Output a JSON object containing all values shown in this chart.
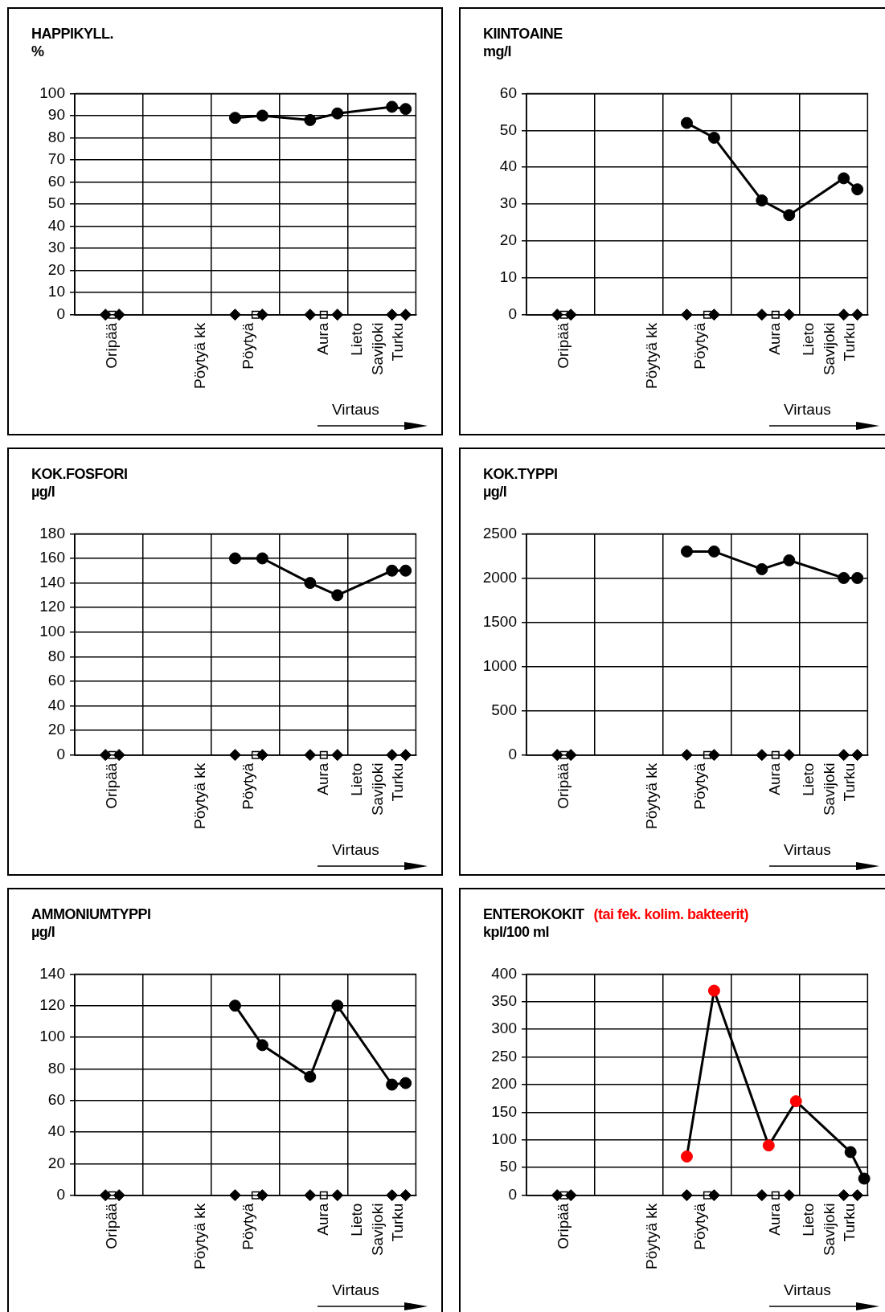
{
  "chart_data": [
    {
      "type": "line",
      "title": "HAPPIKYLL.",
      "ylabel": "%",
      "ylim": [
        0,
        100
      ],
      "yticks": [
        0,
        10,
        20,
        30,
        40,
        50,
        60,
        70,
        80,
        90,
        100
      ],
      "grid": true,
      "categories": [
        null,
        null,
        null,
        null,
        null,
        "Oripää",
        null,
        null,
        null,
        null,
        null,
        null,
        null,
        null,
        null,
        null,
        null,
        null,
        "Pöytyä kk",
        null,
        null,
        null,
        null,
        null,
        null,
        "Pöytyä",
        null,
        null,
        null,
        null,
        null,
        null,
        null,
        null,
        null,
        null,
        "Aura",
        null,
        null,
        null,
        null,
        "Lieto",
        null,
        null,
        "Savijoki",
        null,
        null,
        "Turku",
        null,
        null
      ],
      "series": [
        {
          "type": "line",
          "color": "#000000",
          "marker": "circle",
          "values": [
            null,
            null,
            null,
            null,
            null,
            null,
            null,
            null,
            null,
            null,
            null,
            null,
            null,
            null,
            null,
            null,
            null,
            null,
            null,
            null,
            null,
            null,
            null,
            89,
            null,
            null,
            null,
            90,
            null,
            null,
            null,
            null,
            null,
            null,
            88,
            null,
            null,
            null,
            91,
            null,
            null,
            null,
            null,
            null,
            null,
            null,
            94,
            null,
            93,
            null
          ]
        },
        {
          "type": "scatter",
          "color": "#000000",
          "marker": "diamond",
          "values": [
            null,
            null,
            null,
            null,
            0,
            null,
            0,
            null,
            null,
            null,
            null,
            null,
            null,
            null,
            null,
            null,
            null,
            null,
            null,
            null,
            null,
            null,
            null,
            0,
            null,
            null,
            null,
            0,
            null,
            null,
            null,
            null,
            null,
            null,
            0,
            null,
            null,
            null,
            0,
            null,
            null,
            null,
            null,
            null,
            null,
            null,
            0,
            null,
            0,
            null
          ]
        },
        {
          "type": "scatter",
          "color": "#ffffff",
          "marker": "square",
          "values": [
            null,
            null,
            null,
            null,
            null,
            0,
            null,
            null,
            null,
            null,
            null,
            null,
            null,
            null,
            null,
            null,
            null,
            null,
            null,
            null,
            null,
            null,
            null,
            null,
            null,
            null,
            0,
            null,
            null,
            null,
            null,
            null,
            null,
            null,
            null,
            null,
            0,
            null,
            null,
            null,
            null,
            null,
            null,
            null,
            null,
            null,
            null,
            null,
            null,
            null
          ]
        }
      ],
      "annotations": [
        "Virtaus"
      ]
    },
    {
      "type": "line",
      "title": "KIINTOAINE",
      "ylabel": "mg/l",
      "ylim": [
        0,
        60
      ],
      "yticks": [
        0,
        10,
        20,
        30,
        40,
        50,
        60
      ],
      "grid": true,
      "categories": [
        null,
        null,
        null,
        null,
        null,
        "Oripää",
        null,
        null,
        null,
        null,
        null,
        null,
        null,
        null,
        null,
        null,
        null,
        null,
        "Pöytyä kk",
        null,
        null,
        null,
        null,
        null,
        null,
        "Pöytyä",
        null,
        null,
        null,
        null,
        null,
        null,
        null,
        null,
        null,
        null,
        "Aura",
        null,
        null,
        null,
        null,
        "Lieto",
        null,
        null,
        "Savijoki",
        null,
        null,
        "Turku",
        null,
        null
      ],
      "series": [
        {
          "type": "line",
          "color": "#000000",
          "marker": "circle",
          "values": [
            null,
            null,
            null,
            null,
            null,
            null,
            null,
            null,
            null,
            null,
            null,
            null,
            null,
            null,
            null,
            null,
            null,
            null,
            null,
            null,
            null,
            null,
            null,
            52,
            null,
            null,
            null,
            48,
            null,
            null,
            null,
            null,
            null,
            null,
            31,
            null,
            null,
            null,
            27,
            null,
            null,
            null,
            null,
            null,
            null,
            null,
            37,
            null,
            34,
            null
          ]
        },
        {
          "type": "scatter",
          "color": "#000000",
          "marker": "diamond",
          "values": [
            null,
            null,
            null,
            null,
            0,
            null,
            0,
            null,
            null,
            null,
            null,
            null,
            null,
            null,
            null,
            null,
            null,
            null,
            null,
            null,
            null,
            null,
            null,
            0,
            null,
            null,
            null,
            0,
            null,
            null,
            null,
            null,
            null,
            null,
            0,
            null,
            null,
            null,
            0,
            null,
            null,
            null,
            null,
            null,
            null,
            null,
            0,
            null,
            0,
            null
          ]
        },
        {
          "type": "scatter",
          "color": "#ffffff",
          "marker": "square",
          "values": [
            null,
            null,
            null,
            null,
            null,
            0,
            null,
            null,
            null,
            null,
            null,
            null,
            null,
            null,
            null,
            null,
            null,
            null,
            null,
            null,
            null,
            null,
            null,
            null,
            null,
            null,
            0,
            null,
            null,
            null,
            null,
            null,
            null,
            null,
            null,
            null,
            0,
            null,
            null,
            null,
            null,
            null,
            null,
            null,
            null,
            null,
            null,
            null,
            null,
            null
          ]
        }
      ],
      "annotations": [
        "Virtaus"
      ]
    },
    {
      "type": "line",
      "title": "KOK.FOSFORI",
      "ylabel": "µg/l",
      "ylim": [
        0,
        180
      ],
      "yticks": [
        0,
        20,
        40,
        60,
        80,
        100,
        120,
        140,
        160,
        180
      ],
      "grid": true,
      "categories": [
        null,
        null,
        null,
        null,
        null,
        "Oripää",
        null,
        null,
        null,
        null,
        null,
        null,
        null,
        null,
        null,
        null,
        null,
        null,
        "Pöytyä kk",
        null,
        null,
        null,
        null,
        null,
        null,
        "Pöytyä",
        null,
        null,
        null,
        null,
        null,
        null,
        null,
        null,
        null,
        null,
        "Aura",
        null,
        null,
        null,
        null,
        "Lieto",
        null,
        null,
        "Savijoki",
        null,
        null,
        "Turku",
        null,
        null
      ],
      "series": [
        {
          "type": "line",
          "color": "#000000",
          "marker": "circle",
          "values": [
            null,
            null,
            null,
            null,
            null,
            null,
            null,
            null,
            null,
            null,
            null,
            null,
            null,
            null,
            null,
            null,
            null,
            null,
            null,
            null,
            null,
            null,
            null,
            160,
            null,
            null,
            null,
            160,
            null,
            null,
            null,
            null,
            null,
            null,
            140,
            null,
            null,
            null,
            130,
            null,
            null,
            null,
            null,
            null,
            null,
            null,
            150,
            null,
            150,
            null
          ]
        },
        {
          "type": "scatter",
          "color": "#000000",
          "marker": "diamond",
          "values": [
            null,
            null,
            null,
            null,
            0,
            null,
            0,
            null,
            null,
            null,
            null,
            null,
            null,
            null,
            null,
            null,
            null,
            null,
            null,
            null,
            null,
            null,
            null,
            0,
            null,
            null,
            null,
            0,
            null,
            null,
            null,
            null,
            null,
            null,
            0,
            null,
            null,
            null,
            0,
            null,
            null,
            null,
            null,
            null,
            null,
            null,
            0,
            null,
            0,
            null
          ]
        },
        {
          "type": "scatter",
          "color": "#ffffff",
          "marker": "square",
          "values": [
            null,
            null,
            null,
            null,
            null,
            0,
            null,
            null,
            null,
            null,
            null,
            null,
            null,
            null,
            null,
            null,
            null,
            null,
            null,
            null,
            null,
            null,
            null,
            null,
            null,
            null,
            0,
            null,
            null,
            null,
            null,
            null,
            null,
            null,
            null,
            null,
            0,
            null,
            null,
            null,
            null,
            null,
            null,
            null,
            null,
            null,
            null,
            null,
            null,
            null
          ]
        }
      ],
      "annotations": [
        "Virtaus"
      ]
    },
    {
      "type": "line",
      "title": "KOK.TYPPI",
      "ylabel": "µg/l",
      "ylim": [
        0,
        2500
      ],
      "yticks": [
        0,
        500,
        1000,
        1500,
        2000,
        2500
      ],
      "grid": true,
      "categories": [
        null,
        null,
        null,
        null,
        null,
        "Oripää",
        null,
        null,
        null,
        null,
        null,
        null,
        null,
        null,
        null,
        null,
        null,
        null,
        "Pöytyä kk",
        null,
        null,
        null,
        null,
        null,
        null,
        "Pöytyä",
        null,
        null,
        null,
        null,
        null,
        null,
        null,
        null,
        null,
        null,
        "Aura",
        null,
        null,
        null,
        null,
        "Lieto",
        null,
        null,
        "Savijoki",
        null,
        null,
        "Turku",
        null,
        null
      ],
      "series": [
        {
          "type": "line",
          "color": "#000000",
          "marker": "circle",
          "values": [
            null,
            null,
            null,
            null,
            null,
            null,
            null,
            null,
            null,
            null,
            null,
            null,
            null,
            null,
            null,
            null,
            null,
            null,
            null,
            null,
            null,
            null,
            null,
            2300,
            null,
            null,
            null,
            2300,
            null,
            null,
            null,
            null,
            null,
            null,
            2100,
            null,
            null,
            null,
            2200,
            null,
            null,
            null,
            null,
            null,
            null,
            null,
            2000,
            null,
            2000,
            null
          ]
        },
        {
          "type": "scatter",
          "color": "#000000",
          "marker": "diamond",
          "values": [
            null,
            null,
            null,
            null,
            0,
            null,
            0,
            null,
            null,
            null,
            null,
            null,
            null,
            null,
            null,
            null,
            null,
            null,
            null,
            null,
            null,
            null,
            null,
            0,
            null,
            null,
            null,
            0,
            null,
            null,
            null,
            null,
            null,
            null,
            0,
            null,
            null,
            null,
            0,
            null,
            null,
            null,
            null,
            null,
            null,
            null,
            0,
            null,
            0,
            null
          ]
        },
        {
          "type": "scatter",
          "color": "#ffffff",
          "marker": "square",
          "values": [
            null,
            null,
            null,
            null,
            null,
            0,
            null,
            null,
            null,
            null,
            null,
            null,
            null,
            null,
            null,
            null,
            null,
            null,
            null,
            null,
            null,
            null,
            null,
            null,
            null,
            null,
            0,
            null,
            null,
            null,
            null,
            null,
            null,
            null,
            null,
            null,
            0,
            null,
            null,
            null,
            null,
            null,
            null,
            null,
            null,
            null,
            null,
            null,
            null,
            null
          ]
        }
      ],
      "annotations": [
        "Virtaus"
      ]
    },
    {
      "type": "line",
      "title": "AMMONIUMTYPPI",
      "ylabel": "µg/l",
      "ylim": [
        0,
        140
      ],
      "yticks": [
        0,
        20,
        40,
        60,
        80,
        100,
        120,
        140
      ],
      "grid": true,
      "categories": [
        null,
        null,
        null,
        null,
        null,
        "Oripää",
        null,
        null,
        null,
        null,
        null,
        null,
        null,
        null,
        null,
        null,
        null,
        null,
        "Pöytyä kk",
        null,
        null,
        null,
        null,
        null,
        null,
        "Pöytyä",
        null,
        null,
        null,
        null,
        null,
        null,
        null,
        null,
        null,
        null,
        "Aura",
        null,
        null,
        null,
        null,
        "Lieto",
        null,
        null,
        "Savijoki",
        null,
        null,
        "Turku",
        null,
        null
      ],
      "series": [
        {
          "type": "line",
          "color": "#000000",
          "marker": "circle",
          "values": [
            null,
            null,
            null,
            null,
            null,
            null,
            null,
            null,
            null,
            null,
            null,
            null,
            null,
            null,
            null,
            null,
            null,
            null,
            null,
            null,
            null,
            null,
            null,
            120,
            null,
            null,
            null,
            95,
            null,
            null,
            null,
            null,
            null,
            null,
            75,
            null,
            null,
            null,
            120,
            null,
            null,
            null,
            null,
            null,
            null,
            null,
            70,
            null,
            71,
            null
          ]
        },
        {
          "type": "scatter",
          "color": "#000000",
          "marker": "diamond",
          "values": [
            null,
            null,
            null,
            null,
            0,
            null,
            0,
            null,
            null,
            null,
            null,
            null,
            null,
            null,
            null,
            null,
            null,
            null,
            null,
            null,
            null,
            null,
            null,
            0,
            null,
            null,
            null,
            0,
            null,
            null,
            null,
            null,
            null,
            null,
            0,
            null,
            null,
            null,
            0,
            null,
            null,
            null,
            null,
            null,
            null,
            null,
            0,
            null,
            0,
            null
          ]
        },
        {
          "type": "scatter",
          "color": "#ffffff",
          "marker": "square",
          "values": [
            null,
            null,
            null,
            null,
            null,
            0,
            null,
            null,
            null,
            null,
            null,
            null,
            null,
            null,
            null,
            null,
            null,
            null,
            null,
            null,
            null,
            null,
            null,
            null,
            null,
            null,
            0,
            null,
            null,
            null,
            null,
            null,
            null,
            null,
            null,
            null,
            0,
            null,
            null,
            null,
            null,
            null,
            null,
            null,
            null,
            null,
            null,
            null,
            null,
            null
          ]
        }
      ],
      "annotations": [
        "Virtaus"
      ]
    },
    {
      "type": "line",
      "title": "ENTEROKOKIT",
      "subtitle": "(tai fek. kolim. bakteerit)",
      "ylabel": "kpl/100 ml",
      "ylim": [
        0,
        400
      ],
      "yticks": [
        0,
        50,
        100,
        150,
        200,
        250,
        300,
        350,
        400
      ],
      "grid": true,
      "categories": [
        null,
        null,
        null,
        null,
        null,
        "Oripää",
        null,
        null,
        null,
        null,
        null,
        null,
        null,
        null,
        null,
        null,
        null,
        null,
        "Pöytyä kk",
        null,
        null,
        null,
        null,
        null,
        null,
        "Pöytyä",
        null,
        null,
        null,
        null,
        null,
        null,
        null,
        null,
        null,
        null,
        "Aura",
        null,
        null,
        null,
        null,
        "Lieto",
        null,
        null,
        "Savijoki",
        null,
        null,
        "Turku",
        null,
        null
      ],
      "series": [
        {
          "type": "line",
          "color": "#000000",
          "marker": "circle",
          "values": [
            null,
            null,
            null,
            null,
            null,
            null,
            null,
            null,
            null,
            null,
            null,
            null,
            null,
            null,
            null,
            null,
            null,
            null,
            null,
            null,
            null,
            null,
            null,
            70,
            null,
            null,
            null,
            370,
            null,
            null,
            null,
            null,
            null,
            null,
            null,
            90,
            null,
            null,
            null,
            170,
            null,
            null,
            null,
            null,
            null,
            null,
            null,
            78,
            null,
            30
          ],
          "colors": [
            null,
            null,
            null,
            null,
            null,
            null,
            null,
            null,
            null,
            null,
            null,
            null,
            null,
            null,
            null,
            null,
            null,
            null,
            null,
            null,
            null,
            null,
            null,
            "#ff0000",
            null,
            null,
            null,
            "#ff0000",
            null,
            null,
            null,
            null,
            null,
            null,
            null,
            "#ff0000",
            null,
            null,
            null,
            "#ff0000",
            null,
            null,
            null,
            null,
            null,
            null,
            null,
            "#000000",
            null,
            "#000000"
          ]
        },
        {
          "type": "scatter",
          "color": "#000000",
          "marker": "diamond",
          "values": [
            null,
            null,
            null,
            null,
            0,
            null,
            0,
            null,
            null,
            null,
            null,
            null,
            null,
            null,
            null,
            null,
            null,
            null,
            null,
            null,
            null,
            null,
            null,
            0,
            null,
            null,
            null,
            0,
            null,
            null,
            null,
            null,
            null,
            null,
            0,
            null,
            null,
            null,
            0,
            null,
            null,
            null,
            null,
            null,
            null,
            null,
            0,
            null,
            0,
            null
          ]
        },
        {
          "type": "scatter",
          "color": "#ffffff",
          "marker": "square",
          "values": [
            null,
            null,
            null,
            null,
            null,
            0,
            null,
            null,
            null,
            null,
            null,
            null,
            null,
            null,
            null,
            null,
            null,
            null,
            null,
            null,
            null,
            null,
            null,
            null,
            null,
            null,
            0,
            null,
            null,
            null,
            null,
            null,
            null,
            null,
            null,
            null,
            0,
            null,
            null,
            null,
            null,
            null,
            null,
            null,
            null,
            null,
            null,
            null,
            null,
            null
          ]
        }
      ],
      "annotations": [
        "Virtaus"
      ]
    }
  ]
}
